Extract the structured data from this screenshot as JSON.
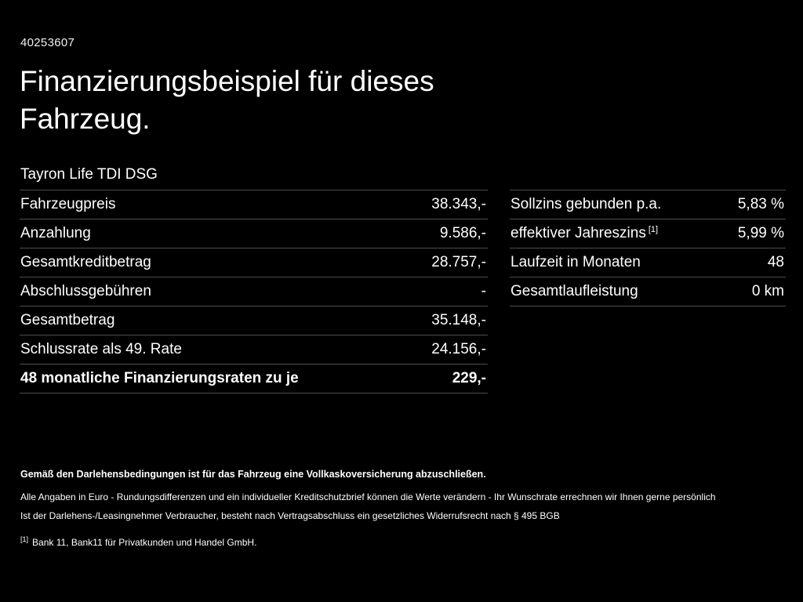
{
  "page": {
    "vehicle_id": "40253607",
    "title_line1": "Finanzierungsbeispiel für dieses",
    "title_line2": "Fahrzeug.",
    "subtitle": "Tayron Life TDI DSG"
  },
  "left_table": {
    "rows": [
      {
        "label": "Fahrzeugpreis",
        "value": "38.343,-"
      },
      {
        "label": "Anzahlung",
        "value": "9.586,-"
      },
      {
        "label": "Gesamtkreditbetrag",
        "value": "28.757,-"
      },
      {
        "label": "Abschlussgebühren",
        "value": "-"
      },
      {
        "label": "Gesamtbetrag",
        "value": "35.148,-"
      },
      {
        "label": "Schlussrate als 49. Rate",
        "value": "24.156,-"
      },
      {
        "label": "48 monatliche Finanzierungsraten zu je",
        "value": "229,-"
      }
    ]
  },
  "right_table": {
    "rows": [
      {
        "label": "Sollzins gebunden p.a.",
        "superscript": "",
        "value": "5,83 %"
      },
      {
        "label": "effektiver Jahreszins",
        "superscript": "[1]",
        "value": "5,99 %"
      },
      {
        "label": "Laufzeit in Monaten",
        "superscript": "",
        "value": "48"
      },
      {
        "label": "Gesamtlaufleistung",
        "superscript": "",
        "value": "0 km"
      }
    ]
  },
  "footer": {
    "insurance_note": "Gemäß den Darlehensbedingungen ist für das Fahrzeug eine Vollkaskoversicherung abzuschließen.",
    "line1": "Alle Angaben in Euro - Rundungsdifferenzen und ein individueller Kreditschutzbrief können die Werte verändern - Ihr Wunschrate errechnen wir Ihnen gerne persönlich",
    "line2": "Ist der Darlehens-/Leasingnehmer Verbraucher, besteht nach Vertragsabschluss ein gesetzliches Widerrufsrecht nach § 495 BGB",
    "footnote_marker": "[1]",
    "footnote_text": "Bank 11, Bank11 für Privatkunden und Handel GmbH."
  },
  "colors": {
    "background": "#000000",
    "text": "#ffffff",
    "divider": "#4d4d4d"
  }
}
